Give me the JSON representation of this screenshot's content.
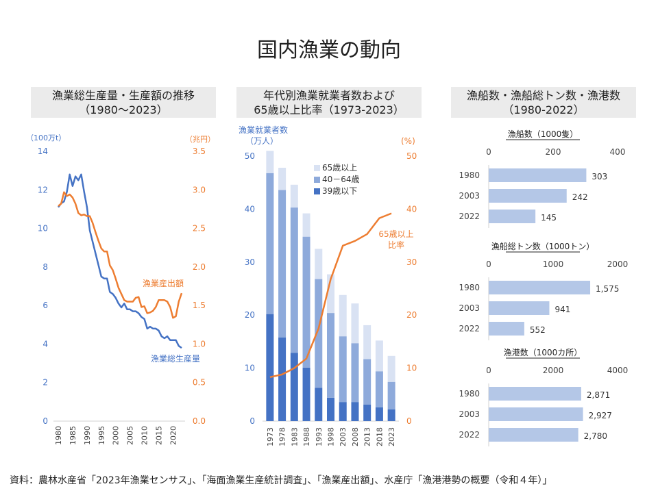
{
  "page_title": "国内漁業の動向",
  "source_note": "資料：農林水産省「2023年漁業センサス」、「海面漁業生産統計調査」、「漁業産出額」、水産庁「漁港港勢の概要（令和４年）」",
  "chart_data": [
    {
      "type": "line",
      "title_lines": [
        "漁業総生産量・生産額の推移",
        "（1980～2023）"
      ],
      "y_left_unit": "（100万t）",
      "y_right_unit": "（兆円）",
      "ylim_left": [
        0,
        14
      ],
      "ylim_right": [
        0,
        3.5
      ],
      "x_ticks": [
        1980,
        1985,
        1990,
        1995,
        2000,
        2005,
        2010,
        2015,
        2020
      ],
      "y_left_ticks": [
        0,
        2,
        4,
        6,
        8,
        10,
        12,
        14
      ],
      "y_right_ticks": [
        "0.0",
        "0.5",
        "1.0",
        "1.5",
        "2.0",
        "2.5",
        "3.0",
        "3.5"
      ],
      "series": [
        {
          "name": "漁業総生産量",
          "axis": "left",
          "color": "#4472c4",
          "x": [
            1980,
            1981,
            1982,
            1983,
            1984,
            1985,
            1986,
            1987,
            1988,
            1989,
            1990,
            1991,
            1992,
            1993,
            1994,
            1995,
            1996,
            1997,
            1998,
            1999,
            2000,
            2001,
            2002,
            2003,
            2004,
            2005,
            2006,
            2007,
            2008,
            2009,
            2010,
            2011,
            2012,
            2013,
            2014,
            2015,
            2016,
            2017,
            2018,
            2019,
            2020,
            2021,
            2022,
            2023
          ],
          "values": [
            11.1,
            11.3,
            11.4,
            11.9,
            12.8,
            12.2,
            12.7,
            12.5,
            12.8,
            11.9,
            11.1,
            9.9,
            9.3,
            8.7,
            8.1,
            7.5,
            7.4,
            7.4,
            6.7,
            6.6,
            6.4,
            6.1,
            5.9,
            6.1,
            5.8,
            5.8,
            5.7,
            5.7,
            5.6,
            5.4,
            5.3,
            4.8,
            4.9,
            4.8,
            4.8,
            4.7,
            4.4,
            4.3,
            4.4,
            4.2,
            4.2,
            4.2,
            3.9,
            3.8
          ]
        },
        {
          "name": "漁業産出額",
          "axis": "right",
          "color": "#ed7d31",
          "x": [
            1980,
            1981,
            1982,
            1983,
            1984,
            1985,
            1986,
            1987,
            1988,
            1989,
            1990,
            1991,
            1992,
            1993,
            1994,
            1995,
            1996,
            1997,
            1998,
            1999,
            2000,
            2001,
            2002,
            2003,
            2004,
            2005,
            2006,
            2007,
            2008,
            2009,
            2010,
            2011,
            2012,
            2013,
            2014,
            2015,
            2016,
            2017,
            2018,
            2019,
            2020,
            2021,
            2022,
            2023
          ],
          "values": [
            2.79,
            2.82,
            2.97,
            2.92,
            2.94,
            2.9,
            2.82,
            2.7,
            2.67,
            2.68,
            2.66,
            2.66,
            2.57,
            2.45,
            2.34,
            2.24,
            2.2,
            2.2,
            2.02,
            1.96,
            1.85,
            1.73,
            1.65,
            1.57,
            1.55,
            1.55,
            1.55,
            1.6,
            1.61,
            1.48,
            1.49,
            1.4,
            1.41,
            1.43,
            1.48,
            1.57,
            1.57,
            1.57,
            1.55,
            1.48,
            1.34,
            1.36,
            1.55,
            1.66
          ]
        }
      ]
    },
    {
      "type": "bar",
      "stacked": true,
      "title_lines": [
        "年代別漁業就業者数および",
        "65歳以上比率（1973-2023）"
      ],
      "y_left_unit_lines": [
        "漁業就業者数",
        "（万人）"
      ],
      "y_right_unit": "(%)",
      "ylim_left": [
        0,
        50
      ],
      "ylim_right": [
        0,
        50
      ],
      "y_ticks": [
        0,
        10,
        20,
        30,
        40,
        50
      ],
      "categories": [
        "1973",
        "1978",
        "1983",
        "1988",
        "1993",
        "1998",
        "2003",
        "2008",
        "2013",
        "2018",
        "2023"
      ],
      "series": [
        {
          "name": "39歳以下",
          "color": "#4472c4",
          "values": [
            20.2,
            15.8,
            12.9,
            10.1,
            6.3,
            4.4,
            3.6,
            3.6,
            3.1,
            2.6,
            2.2
          ]
        },
        {
          "name": "40－64歳",
          "color": "#8eaadb",
          "values": [
            26.6,
            27.8,
            27.4,
            24.7,
            20.5,
            16.0,
            12.4,
            11.1,
            8.6,
            6.8,
            5.2
          ]
        },
        {
          "name": "65歳以上",
          "color": "#d9e2f3",
          "values": [
            4.2,
            4.2,
            4.3,
            4.4,
            5.7,
            7.3,
            7.8,
            7.5,
            6.4,
            5.8,
            4.9
          ]
        },
        {
          "name": "65歳以上比率",
          "type": "line",
          "axis": "right",
          "color": "#ed7d31",
          "values": [
            8.3,
            8.8,
            10.0,
            11.8,
            17.5,
            26.8,
            33.1,
            34.0,
            35.3,
            38.3,
            39.2
          ]
        }
      ],
      "line_label_lines": [
        "65歳以上",
        "比率"
      ]
    },
    {
      "type": "bar",
      "orientation": "horizontal",
      "title_lines": [
        "漁船数・漁船総トン数・漁港数",
        "（1980-2022）"
      ],
      "panels": [
        {
          "title": "漁船数（1000隻）",
          "xlim": [
            0,
            400
          ],
          "x_ticks": [
            "0",
            "200",
            "400"
          ],
          "categories": [
            "1980",
            "2003",
            "2022"
          ],
          "values": [
            303,
            242,
            145
          ],
          "labels": [
            "303",
            "242",
            "145"
          ]
        },
        {
          "title": "漁船総トン数（1000トン）",
          "xlim": [
            0,
            2000
          ],
          "x_ticks": [
            "0",
            "1000",
            "2000"
          ],
          "categories": [
            "1980",
            "2003",
            "2022"
          ],
          "values": [
            1575,
            941,
            552
          ],
          "labels": [
            "1,575",
            "941",
            "552"
          ]
        },
        {
          "title": "漁港数（1000カ所）",
          "xlim": [
            0,
            4000
          ],
          "x_ticks": [
            "0",
            "2000",
            "4000"
          ],
          "categories": [
            "1980",
            "2003",
            "2022"
          ],
          "values": [
            2871,
            2927,
            2780
          ],
          "labels": [
            "2,871",
            "2,927",
            "2,780"
          ]
        }
      ],
      "bar_color": "#b4c7e7"
    }
  ]
}
